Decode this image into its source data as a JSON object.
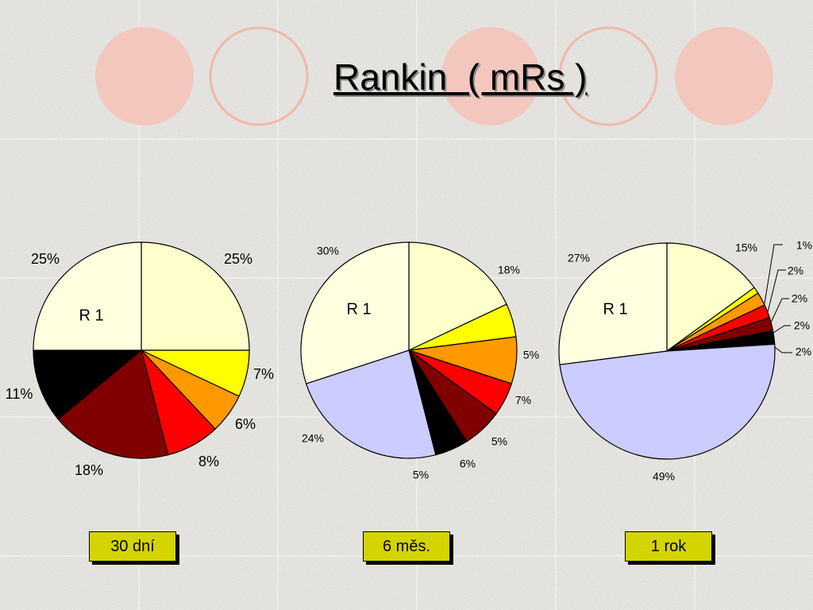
{
  "title": "Rankin  ( mRs )",
  "colors": {
    "background": "#e6e5e1",
    "circle_fill": "#f3c7bd",
    "circle_ring": "#f1b8a9",
    "label_box": "#d4d400",
    "pie_outline": "#000000"
  },
  "chart_data": [
    {
      "type": "pie",
      "center_label": "R 1",
      "period_label": "30 dní",
      "slices": [
        {
          "value": 25,
          "label": "25%",
          "color": "#ffffcc"
        },
        {
          "value": 7,
          "label": "7%",
          "color": "#ffff00"
        },
        {
          "value": 6,
          "label": "6%",
          "color": "#ff9900"
        },
        {
          "value": 8,
          "label": "8%",
          "color": "#ff0000"
        },
        {
          "value": 18,
          "label": "18%",
          "color": "#800000"
        },
        {
          "value": 11,
          "label": "11%",
          "color": "#000000"
        },
        {
          "value": 25,
          "label": "25%",
          "color": "#ffffe0"
        }
      ]
    },
    {
      "type": "pie",
      "center_label": "R 1",
      "period_label": "6 měs.",
      "slices": [
        {
          "value": 18,
          "label": "18%",
          "color": "#ffffcc"
        },
        {
          "value": 5,
          "label": "5%",
          "color": "#ffff00"
        },
        {
          "value": 7,
          "label": "7%",
          "color": "#ff9900"
        },
        {
          "value": 5,
          "label": "5%",
          "color": "#ff0000"
        },
        {
          "value": 6,
          "label": "6%",
          "color": "#800000"
        },
        {
          "value": 5,
          "label": "5%",
          "color": "#000000"
        },
        {
          "value": 24,
          "label": "24%",
          "color": "#ccccff"
        },
        {
          "value": 30,
          "label": "30%",
          "color": "#ffffe0"
        }
      ]
    },
    {
      "type": "pie",
      "center_label": "R 1",
      "period_label": "1 rok",
      "slices": [
        {
          "value": 15,
          "label": "15%",
          "color": "#ffffcc"
        },
        {
          "value": 1,
          "label": "1%",
          "color": "#ffff00"
        },
        {
          "value": 2,
          "label": "2%",
          "color": "#ff9900"
        },
        {
          "value": 2,
          "label": "2%",
          "color": "#ff0000"
        },
        {
          "value": 2,
          "label": "2%",
          "color": "#800000"
        },
        {
          "value": 2,
          "label": "2%",
          "color": "#000000"
        },
        {
          "value": 49,
          "label": "49%",
          "color": "#ccccff"
        },
        {
          "value": 27,
          "label": "27%",
          "color": "#ffffe0"
        }
      ]
    }
  ]
}
